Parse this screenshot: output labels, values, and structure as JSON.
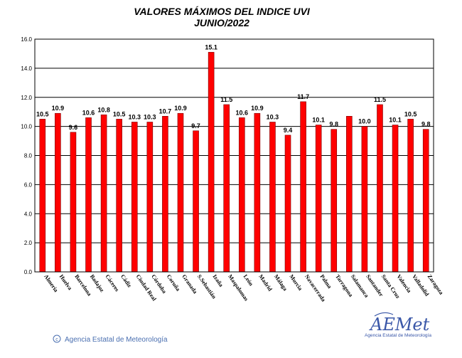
{
  "title": "VALORES MÁXIMOS DEL INDICE UVI",
  "subtitle": "JUNIO/2022",
  "credit": "Agencia Estatal de Meteorología",
  "logo": {
    "name": "AEMet",
    "tagline": "Agencia Estatal de Meteorología"
  },
  "colors": {
    "bar": "#ff0000",
    "bar_stroke": "#7a0000",
    "grid": "#000000",
    "credit": "#4a6fb0",
    "logo": "#3a57a8"
  },
  "chart_data": {
    "type": "bar",
    "title": "VALORES MÁXIMOS DEL INDICE UVI",
    "subtitle": "JUNIO/2022",
    "categories": [
      "Almería",
      "Huelva",
      "Barcelona",
      "Badajoz",
      "Cáceres",
      "Cádiz",
      "Ciudad Real",
      "Córdoba",
      "Coruña",
      "Granada",
      "S.Sebastián",
      "Izaña",
      "Maspalomas",
      "León",
      "Madrid",
      "Málaga",
      "Murcia",
      "Navacerrada",
      "Palma",
      "Tarragona",
      "Salamanca",
      "Santander",
      "Santa Cruz",
      "Valencia",
      "Valladolid",
      "Zaragoza"
    ],
    "values": [
      10.5,
      10.9,
      9.6,
      10.6,
      10.8,
      10.5,
      10.3,
      10.3,
      10.7,
      10.9,
      9.7,
      15.1,
      11.5,
      10.6,
      10.9,
      10.3,
      9.4,
      11.7,
      10.1,
      9.8,
      10.7,
      10.0,
      11.5,
      10.1,
      10.5,
      9.8
    ],
    "data_labels": [
      "10.5",
      "10.9",
      "9.6",
      "10.6",
      "10.8",
      "10.5",
      "10.3",
      "10.3",
      "10.7",
      "10.9",
      "9.7",
      "15.1",
      "11.5",
      "10.6",
      "10.9",
      "10.3",
      "9.4",
      "11.7",
      "10.1",
      "9.8",
      "",
      "10.0",
      "11.5",
      "10.1",
      "10.5",
      "9.8"
    ],
    "yticks": [
      "0.0",
      "2.0",
      "4.0",
      "6.0",
      "8.0",
      "10.0",
      "12.0",
      "14.0",
      "16.0"
    ],
    "ylim": [
      0,
      16
    ],
    "grid": true,
    "legend": "none"
  }
}
